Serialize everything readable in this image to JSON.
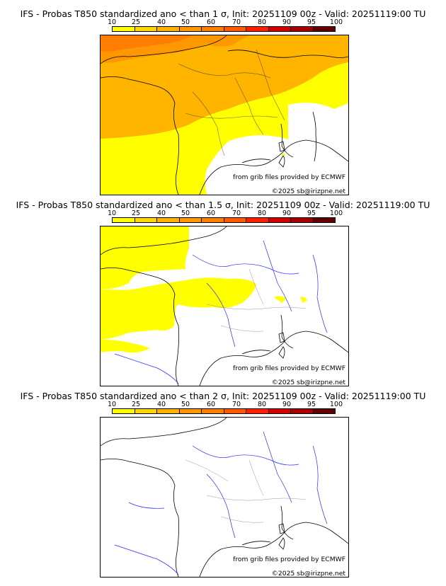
{
  "scale": {
    "ticks": [
      "10",
      "25",
      "40",
      "50",
      "60",
      "70",
      "80",
      "90",
      "95",
      "100"
    ],
    "colors": [
      "#ffff00",
      "#ffd700",
      "#ffb400",
      "#ff9800",
      "#ff7e00",
      "#ff5a00",
      "#ff1e00",
      "#d40000",
      "#a80000",
      "#600000"
    ]
  },
  "credit": {
    "source": "from grib files provided by ECMWF",
    "copyright": "©2025 sb@irizpne.net"
  },
  "panels": [
    {
      "title": "IFS - Probas T850  standardized ano < than 1 σ, Init: 20251109 00z - Valid: 20251119:00 TU",
      "coverage": "high"
    },
    {
      "title": "IFS - Probas T850  standardized ano < than 1.5 σ, Init: 20251109 00z - Valid: 20251119:00 TU",
      "coverage": "west"
    },
    {
      "title": "IFS - Probas T850  standardized ano < than 2 σ, Init: 20251109 00z - Valid: 20251119:00 TU",
      "coverage": "none"
    }
  ]
}
